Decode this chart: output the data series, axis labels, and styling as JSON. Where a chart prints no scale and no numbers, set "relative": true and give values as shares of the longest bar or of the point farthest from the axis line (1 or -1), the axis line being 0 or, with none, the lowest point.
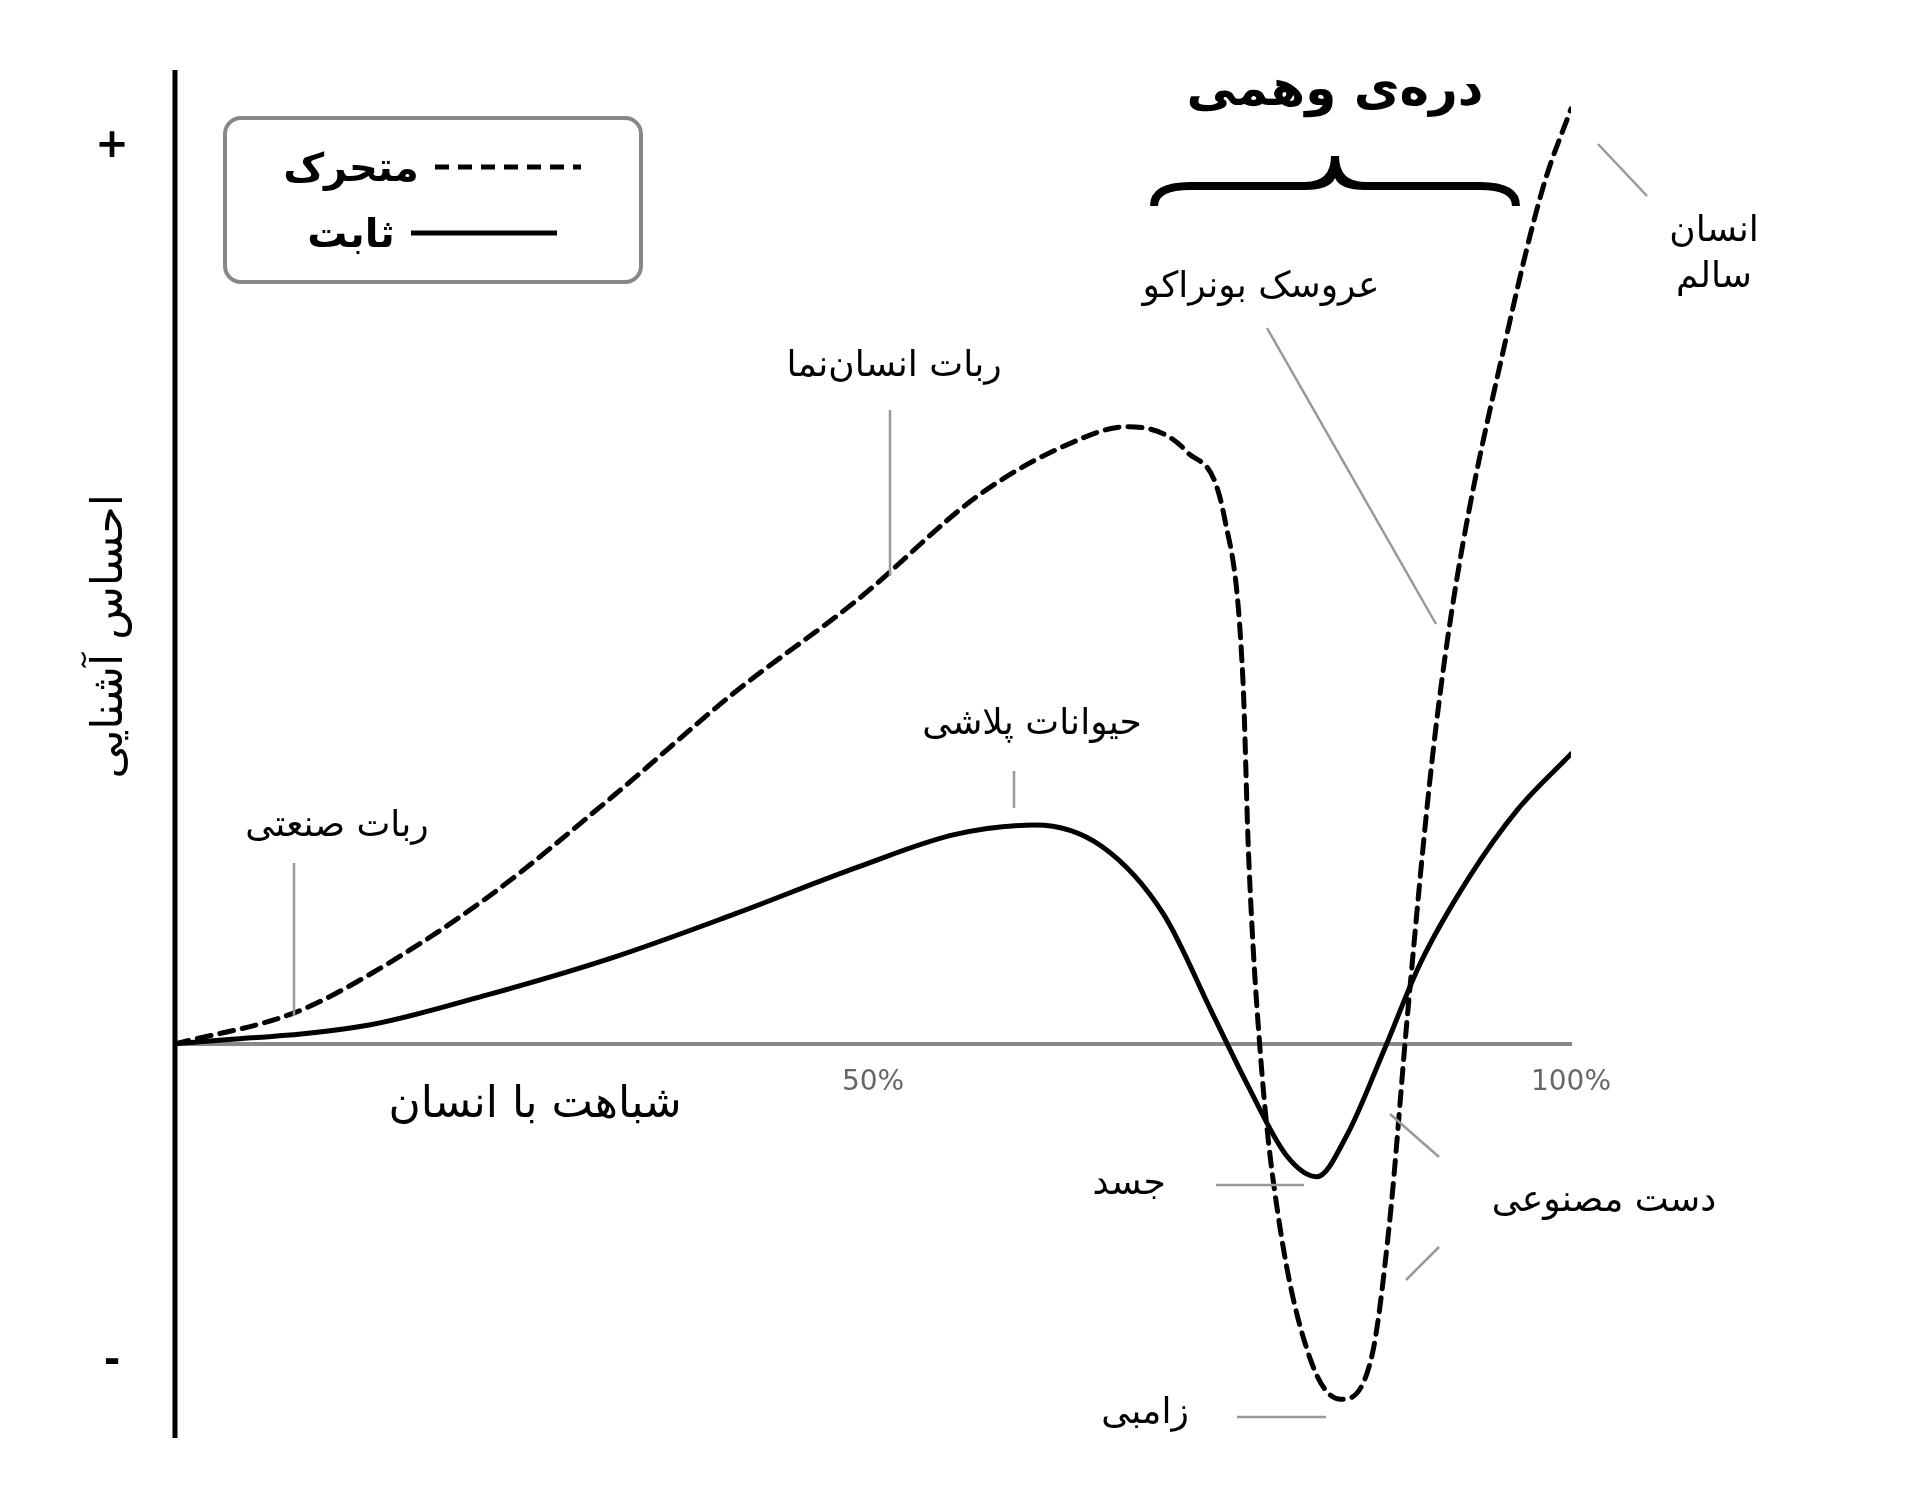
{
  "chart_data": {
    "type": "line",
    "relative": true,
    "xlabel": "شباهت با انسان",
    "ylabel": "احساس آشنایی",
    "xlim": [
      0,
      100
    ],
    "xticks": [
      {
        "value": 50,
        "label": "50%"
      },
      {
        "value": 100,
        "label": "100%"
      }
    ],
    "grid": false,
    "legend": "top left",
    "marker": "none",
    "series": [
      {
        "name": "متحرک",
        "color": "#000000",
        "line_style": "dashed",
        "x": [
          0,
          8.5,
          13.8,
          22.5,
          31.3,
          40.1,
          48.9,
          57.6,
          63.8,
          68.2,
          72.5,
          75.2,
          76.5,
          76.9,
          77.8,
          79.1,
          81.3,
          83.5,
          85.7,
          87.0,
          88.3,
          90.1,
          91.8,
          95.4,
          98.0,
          100
        ],
        "values": [
          0,
          0.033,
          0.073,
          0.158,
          0.264,
          0.376,
          0.475,
          0.587,
          0.64,
          0.66,
          0.633,
          0.561,
          0.389,
          0.204,
          -0.02,
          -0.191,
          -0.336,
          -0.38,
          -0.336,
          -0.191,
          0.033,
          0.31,
          0.495,
          0.758,
          0.916,
          1.0
        ]
      },
      {
        "name": "ثابت",
        "color": "#000000",
        "line_style": "solid",
        "x": [
          0,
          13.8,
          22.5,
          31.3,
          40.1,
          48.9,
          55.9,
          61.6,
          66.4,
          70.8,
          74.3,
          76.9,
          79.6,
          81.8,
          83.9,
          86.6,
          89.2,
          92.7,
          96.2,
          100
        ],
        "values": [
          0,
          0.02,
          0.053,
          0.092,
          0.139,
          0.189,
          0.224,
          0.234,
          0.211,
          0.139,
          0.033,
          -0.046,
          -0.119,
          -0.142,
          -0.099,
          -0.007,
          0.086,
          0.178,
          0.251,
          0.31
        ]
      }
    ],
    "annotations": [
      "+",
      "-",
      "دره‌ی وهمی",
      "ربات صنعتی",
      "ربات انسان‌نما",
      "حیوانات پلاشی",
      "عروسک بونراکو",
      "انسان سالم",
      "جسد",
      "زامبی",
      "دست مصنوعی"
    ]
  }
}
